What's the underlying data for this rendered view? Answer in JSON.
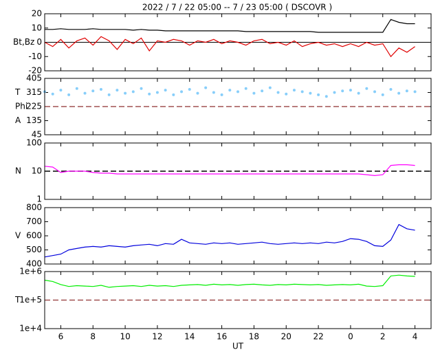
{
  "title": "2022 /  7 / 22   05:00 -- 7 / 23   05:00 ( DSCOVR )",
  "xlabel": "UT",
  "chart_data": [
    {
      "type": "line",
      "ylabels": [
        "Bt,Bz"
      ],
      "xlim": [
        5,
        29
      ],
      "ylim": [
        -20,
        20
      ],
      "yticks": [
        -20,
        -10,
        0,
        10,
        20
      ],
      "hline": {
        "value": 0,
        "color": "#000000",
        "dashed": false
      },
      "x": [
        5,
        5.5,
        6,
        6.5,
        7,
        7.5,
        8,
        8.5,
        9,
        9.5,
        10,
        10.5,
        11,
        11.5,
        12,
        12.5,
        13,
        13.5,
        14,
        14.5,
        15,
        15.5,
        16,
        16.5,
        17,
        17.5,
        18,
        18.5,
        19,
        19.5,
        20,
        20.5,
        21,
        21.5,
        22,
        22.5,
        23,
        23.5,
        24,
        24.5,
        25,
        25.5,
        26,
        26.5,
        27,
        27.5,
        28
      ],
      "series": [
        {
          "color": "#000000",
          "values": [
            9,
            9,
            9.5,
            9,
            9,
            9,
            9.5,
            9,
            9,
            9,
            9,
            8.5,
            9,
            8.5,
            8.5,
            8,
            8,
            8,
            8,
            8,
            8,
            8,
            8,
            8,
            8,
            7.5,
            7.5,
            7.5,
            7.5,
            7.5,
            7.5,
            7.5,
            7.5,
            7.5,
            7,
            7,
            7,
            7,
            7,
            7,
            7,
            7,
            7,
            16,
            14,
            13,
            13
          ]
        },
        {
          "color": "#e00000",
          "values": [
            0,
            -3,
            2,
            -4,
            1,
            3,
            -2,
            4,
            1,
            -5,
            2,
            -1,
            3,
            -6,
            1,
            0,
            2,
            1,
            -2,
            1,
            0,
            2,
            -1,
            1,
            0,
            -2,
            1,
            2,
            -1,
            0,
            -2,
            1,
            -3,
            -1,
            0,
            -2,
            -1,
            -3,
            -1,
            -3,
            0,
            -2,
            -1,
            -10,
            -4,
            -7,
            -3
          ]
        }
      ]
    },
    {
      "type": "scatter",
      "ylabels": [
        "T",
        "Phi",
        "A"
      ],
      "xlim": [
        5,
        29
      ],
      "ylim": [
        45,
        405
      ],
      "yticks": [
        45,
        135,
        225,
        315,
        405
      ],
      "hline": {
        "value": 225,
        "color": "#a05050",
        "dashed": true
      },
      "x": [
        5,
        5.5,
        6,
        6.5,
        7,
        7.5,
        8,
        8.5,
        9,
        9.5,
        10,
        10.5,
        11,
        11.5,
        12,
        12.5,
        13,
        13.5,
        14,
        14.5,
        15,
        15.5,
        16,
        16.5,
        17,
        17.5,
        18,
        18.5,
        19,
        19.5,
        20,
        20.5,
        21,
        21.5,
        22,
        22.5,
        23,
        23.5,
        24,
        24.5,
        25,
        25.5,
        26,
        26.5,
        27,
        27.5,
        28
      ],
      "series": [
        {
          "color": "#87cefa",
          "values": [
            320,
            305,
            330,
            300,
            340,
            310,
            325,
            335,
            300,
            330,
            310,
            320,
            340,
            305,
            315,
            330,
            300,
            320,
            335,
            310,
            345,
            315,
            300,
            330,
            320,
            340,
            310,
            325,
            345,
            315,
            305,
            330,
            320,
            310,
            300,
            290,
            315,
            325,
            330,
            310,
            340,
            320,
            300,
            335,
            310,
            325,
            320
          ]
        }
      ]
    },
    {
      "type": "line",
      "log": true,
      "ylabels": [
        "N"
      ],
      "xlim": [
        5,
        29
      ],
      "ylim": [
        1,
        100
      ],
      "yticks": [
        1,
        10,
        100
      ],
      "hline": {
        "value": 10,
        "color": "#000000",
        "dashed": true
      },
      "x": [
        5,
        5.5,
        6,
        6.5,
        7,
        7.5,
        8,
        8.5,
        9,
        9.5,
        10,
        10.5,
        11,
        11.5,
        12,
        12.5,
        13,
        13.5,
        14,
        14.5,
        15,
        15.5,
        16,
        16.5,
        17,
        17.5,
        18,
        18.5,
        19,
        19.5,
        20,
        20.5,
        21,
        21.5,
        22,
        22.5,
        23,
        23.5,
        24,
        24.5,
        25,
        25.5,
        26,
        26.5,
        27,
        27.5,
        28
      ],
      "series": [
        {
          "color": "#ff00ff",
          "values": [
            15,
            14,
            9,
            10,
            10,
            10,
            9,
            8.5,
            8.5,
            8,
            8,
            8,
            8,
            8,
            8,
            8,
            8,
            8,
            8,
            8,
            8,
            8,
            8,
            8,
            8,
            8,
            8,
            8,
            8,
            8,
            8,
            8,
            8,
            8,
            8,
            8,
            8,
            8,
            8,
            8,
            7.5,
            7,
            7.5,
            16,
            17,
            17,
            16
          ]
        }
      ]
    },
    {
      "type": "line",
      "ylabels": [
        "V"
      ],
      "xlim": [
        5,
        29
      ],
      "ylim": [
        400,
        800
      ],
      "yticks": [
        400,
        500,
        600,
        700,
        800
      ],
      "x": [
        5,
        5.5,
        6,
        6.5,
        7,
        7.5,
        8,
        8.5,
        9,
        9.5,
        10,
        10.5,
        11,
        11.5,
        12,
        12.5,
        13,
        13.5,
        14,
        14.5,
        15,
        15.5,
        16,
        16.5,
        17,
        17.5,
        18,
        18.5,
        19,
        19.5,
        20,
        20.5,
        21,
        21.5,
        22,
        22.5,
        23,
        23.5,
        24,
        24.5,
        25,
        25.5,
        26,
        26.5,
        27,
        27.5,
        28
      ],
      "series": [
        {
          "color": "#0000dd",
          "values": [
            450,
            460,
            470,
            500,
            510,
            520,
            525,
            520,
            530,
            525,
            520,
            530,
            535,
            540,
            530,
            545,
            540,
            575,
            550,
            545,
            540,
            550,
            545,
            550,
            540,
            545,
            550,
            555,
            545,
            540,
            545,
            550,
            545,
            550,
            545,
            555,
            550,
            560,
            580,
            575,
            560,
            530,
            525,
            570,
            680,
            650,
            640
          ]
        }
      ]
    },
    {
      "type": "line",
      "log": true,
      "ylabels": [
        "T"
      ],
      "xlim": [
        5,
        29
      ],
      "ylim": [
        10000,
        1000000
      ],
      "yticks": [
        {
          "value": 10000,
          "label": "1e+4"
        },
        {
          "value": 100000,
          "label": "1e+5"
        },
        {
          "value": 1000000,
          "label": "1e+6"
        }
      ],
      "hline": {
        "value": 100000,
        "color": "#a05050",
        "dashed": true
      },
      "xticks": [
        6,
        8,
        10,
        12,
        14,
        16,
        18,
        20,
        22,
        {
          "value": 24,
          "label": "0"
        },
        {
          "value": 26,
          "label": "2"
        },
        {
          "value": 28,
          "label": "4"
        }
      ],
      "x": [
        5,
        5.5,
        6,
        6.5,
        7,
        7.5,
        8,
        8.5,
        9,
        9.5,
        10,
        10.5,
        11,
        11.5,
        12,
        12.5,
        13,
        13.5,
        14,
        14.5,
        15,
        15.5,
        16,
        16.5,
        17,
        17.5,
        18,
        18.5,
        19,
        19.5,
        20,
        20.5,
        21,
        21.5,
        22,
        22.5,
        23,
        23.5,
        24,
        24.5,
        25,
        25.5,
        26,
        26.5,
        27,
        27.5,
        28
      ],
      "series": [
        {
          "color": "#00ee00",
          "values": [
            500000,
            450000,
            350000,
            300000,
            320000,
            310000,
            300000,
            330000,
            280000,
            300000,
            310000,
            320000,
            300000,
            330000,
            310000,
            320000,
            300000,
            330000,
            340000,
            350000,
            330000,
            360000,
            340000,
            350000,
            330000,
            350000,
            360000,
            340000,
            330000,
            350000,
            340000,
            360000,
            350000,
            340000,
            350000,
            330000,
            340000,
            350000,
            340000,
            360000,
            310000,
            300000,
            320000,
            700000,
            750000,
            700000,
            680000
          ]
        }
      ]
    }
  ]
}
